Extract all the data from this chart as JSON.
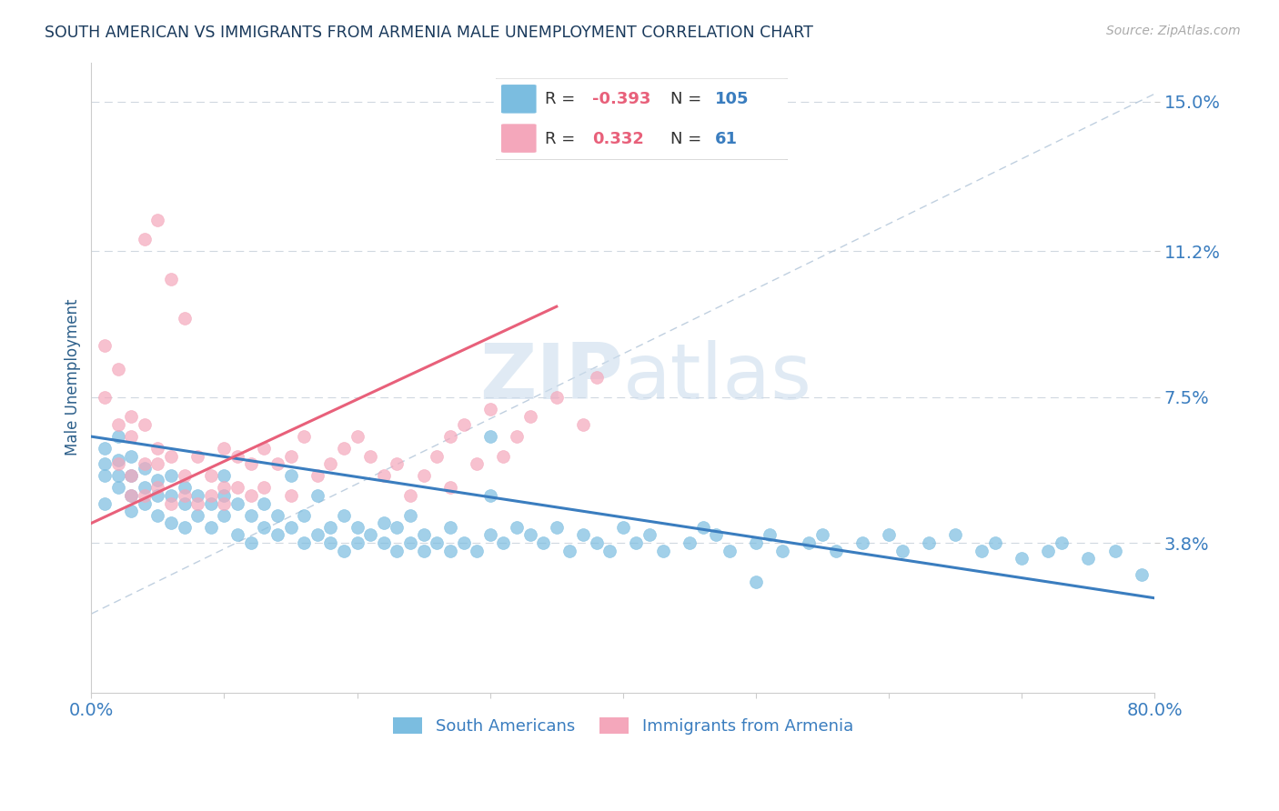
{
  "title": "SOUTH AMERICAN VS IMMIGRANTS FROM ARMENIA MALE UNEMPLOYMENT CORRELATION CHART",
  "source_text": "Source: ZipAtlas.com",
  "ylabel": "Male Unemployment",
  "xmin": 0.0,
  "xmax": 0.8,
  "ymin": 0.0,
  "ymax": 0.16,
  "yticks": [
    0.038,
    0.075,
    0.112,
    0.15
  ],
  "ytick_labels": [
    "3.8%",
    "7.5%",
    "11.2%",
    "15.0%"
  ],
  "xticks": [
    0.0,
    0.1,
    0.2,
    0.3,
    0.4,
    0.5,
    0.6,
    0.7,
    0.8
  ],
  "xtick_labels": [
    "0.0%",
    "",
    "",
    "",
    "",
    "",
    "",
    "",
    "80.0%"
  ],
  "blue_color": "#7bbde0",
  "pink_color": "#f4a7bb",
  "blue_line_color": "#3a7dbf",
  "pink_line_color": "#e8607a",
  "title_color": "#1a3a5c",
  "axis_label_color": "#2c5f8a",
  "tick_label_color": "#3a7dbf",
  "legend_R_neg_color": "#e8607a",
  "legend_N_color": "#3a7dbf",
  "watermark_zip": "ZIP",
  "watermark_atlas": "atlas",
  "blue_trend_x0": 0.0,
  "blue_trend_y0": 0.065,
  "blue_trend_x1": 0.8,
  "blue_trend_y1": 0.024,
  "pink_trend_x0": 0.0,
  "pink_trend_y0": 0.043,
  "pink_trend_x1": 0.35,
  "pink_trend_y1": 0.098,
  "blue_scatter_x": [
    0.01,
    0.01,
    0.01,
    0.01,
    0.02,
    0.02,
    0.02,
    0.02,
    0.03,
    0.03,
    0.03,
    0.03,
    0.04,
    0.04,
    0.04,
    0.05,
    0.05,
    0.05,
    0.06,
    0.06,
    0.06,
    0.07,
    0.07,
    0.07,
    0.08,
    0.08,
    0.09,
    0.09,
    0.1,
    0.1,
    0.1,
    0.11,
    0.11,
    0.12,
    0.12,
    0.13,
    0.13,
    0.14,
    0.14,
    0.15,
    0.15,
    0.16,
    0.16,
    0.17,
    0.17,
    0.18,
    0.18,
    0.19,
    0.19,
    0.2,
    0.2,
    0.21,
    0.22,
    0.22,
    0.23,
    0.23,
    0.24,
    0.24,
    0.25,
    0.25,
    0.26,
    0.27,
    0.27,
    0.28,
    0.29,
    0.3,
    0.3,
    0.31,
    0.32,
    0.33,
    0.34,
    0.35,
    0.36,
    0.37,
    0.38,
    0.39,
    0.4,
    0.41,
    0.42,
    0.43,
    0.45,
    0.46,
    0.47,
    0.48,
    0.5,
    0.51,
    0.52,
    0.54,
    0.55,
    0.56,
    0.58,
    0.6,
    0.61,
    0.63,
    0.65,
    0.67,
    0.68,
    0.7,
    0.72,
    0.73,
    0.75,
    0.77,
    0.79,
    0.3,
    0.5
  ],
  "blue_scatter_y": [
    0.055,
    0.058,
    0.062,
    0.048,
    0.055,
    0.052,
    0.059,
    0.065,
    0.05,
    0.055,
    0.06,
    0.046,
    0.052,
    0.057,
    0.048,
    0.05,
    0.054,
    0.045,
    0.05,
    0.055,
    0.043,
    0.048,
    0.052,
    0.042,
    0.05,
    0.045,
    0.048,
    0.042,
    0.05,
    0.045,
    0.055,
    0.048,
    0.04,
    0.045,
    0.038,
    0.042,
    0.048,
    0.04,
    0.045,
    0.042,
    0.055,
    0.038,
    0.045,
    0.04,
    0.05,
    0.038,
    0.042,
    0.036,
    0.045,
    0.038,
    0.042,
    0.04,
    0.038,
    0.043,
    0.036,
    0.042,
    0.038,
    0.045,
    0.036,
    0.04,
    0.038,
    0.036,
    0.042,
    0.038,
    0.036,
    0.04,
    0.05,
    0.038,
    0.042,
    0.04,
    0.038,
    0.042,
    0.036,
    0.04,
    0.038,
    0.036,
    0.042,
    0.038,
    0.04,
    0.036,
    0.038,
    0.042,
    0.04,
    0.036,
    0.038,
    0.04,
    0.036,
    0.038,
    0.04,
    0.036,
    0.038,
    0.04,
    0.036,
    0.038,
    0.04,
    0.036,
    0.038,
    0.034,
    0.036,
    0.038,
    0.034,
    0.036,
    0.03,
    0.065,
    0.028
  ],
  "pink_scatter_x": [
    0.01,
    0.01,
    0.02,
    0.02,
    0.02,
    0.03,
    0.03,
    0.03,
    0.03,
    0.04,
    0.04,
    0.04,
    0.05,
    0.05,
    0.05,
    0.06,
    0.06,
    0.07,
    0.07,
    0.08,
    0.08,
    0.09,
    0.09,
    0.1,
    0.1,
    0.1,
    0.11,
    0.11,
    0.12,
    0.12,
    0.13,
    0.13,
    0.14,
    0.15,
    0.15,
    0.16,
    0.17,
    0.18,
    0.19,
    0.2,
    0.21,
    0.22,
    0.23,
    0.24,
    0.25,
    0.26,
    0.27,
    0.27,
    0.28,
    0.29,
    0.3,
    0.31,
    0.32,
    0.33,
    0.35,
    0.37,
    0.38,
    0.04,
    0.05,
    0.06,
    0.07
  ],
  "pink_scatter_y": [
    0.075,
    0.088,
    0.082,
    0.068,
    0.058,
    0.065,
    0.07,
    0.055,
    0.05,
    0.068,
    0.058,
    0.05,
    0.062,
    0.052,
    0.058,
    0.06,
    0.048,
    0.055,
    0.05,
    0.06,
    0.048,
    0.055,
    0.05,
    0.062,
    0.052,
    0.048,
    0.06,
    0.052,
    0.058,
    0.05,
    0.062,
    0.052,
    0.058,
    0.06,
    0.05,
    0.065,
    0.055,
    0.058,
    0.062,
    0.065,
    0.06,
    0.055,
    0.058,
    0.05,
    0.055,
    0.06,
    0.065,
    0.052,
    0.068,
    0.058,
    0.072,
    0.06,
    0.065,
    0.07,
    0.075,
    0.068,
    0.08,
    0.115,
    0.12,
    0.105,
    0.095
  ]
}
